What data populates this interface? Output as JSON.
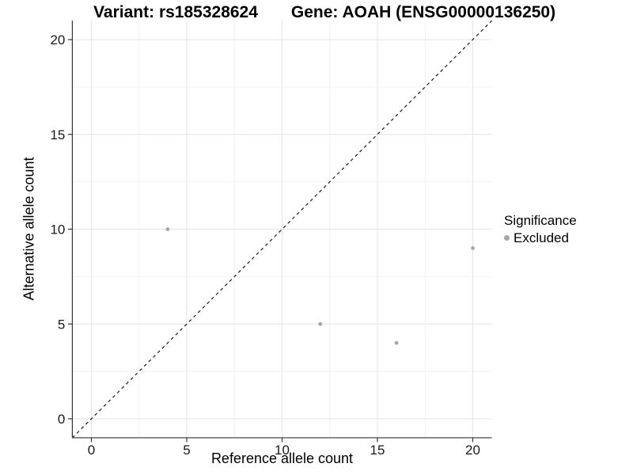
{
  "chart_data": {
    "type": "scatter",
    "title_left": "Variant: rs185328624",
    "title_right": "Gene: AOAH (ENSG00000136250)",
    "xlabel": "Reference allele count",
    "ylabel": "Alternative allele count",
    "xlim": [
      -1,
      21
    ],
    "ylim": [
      -1,
      21
    ],
    "x_ticks": [
      0,
      5,
      10,
      15,
      20
    ],
    "y_ticks": [
      0,
      5,
      10,
      15,
      20
    ],
    "minor_ticks": [
      2.5,
      7.5,
      12.5,
      17.5
    ],
    "grid": true,
    "series": [
      {
        "name": "Excluded",
        "color": "#a6a6a6",
        "points": [
          [
            4,
            10
          ],
          [
            12,
            5
          ],
          [
            16,
            4
          ],
          [
            20,
            9
          ]
        ]
      }
    ],
    "reference_line": {
      "type": "identity",
      "style": "dashed",
      "from": [
        -1,
        -1
      ],
      "to": [
        21,
        21
      ]
    },
    "legend": {
      "title": "Significance",
      "position": "right",
      "items": [
        {
          "label": "Excluded",
          "color": "#a6a6a6"
        }
      ]
    },
    "colors": {
      "grid_major": "#e4e4e4",
      "grid_minor": "#f2f2f2",
      "axis": "#333333",
      "reference": "#1a1a1a",
      "background": "#ffffff"
    }
  }
}
